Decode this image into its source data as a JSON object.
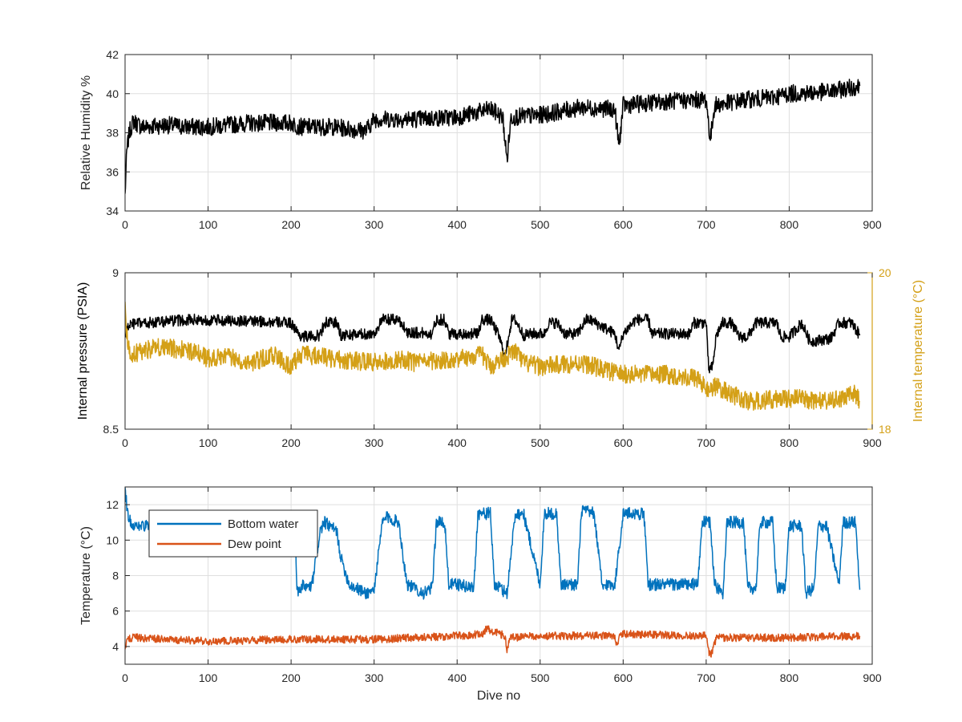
{
  "chart_data": [
    {
      "type": "line",
      "ylabel": "Relative Humidity %",
      "xlim": [
        0,
        900
      ],
      "ylim": [
        34,
        42
      ],
      "xticks": [
        0,
        100,
        200,
        300,
        400,
        500,
        600,
        700,
        800,
        900
      ],
      "yticks": [
        34,
        36,
        38,
        40,
        42
      ],
      "grid": true,
      "series": [
        {
          "color": "#000000",
          "x": [
            0,
            2,
            5,
            10,
            20,
            50,
            75,
            100,
            150,
            200,
            210,
            250,
            290,
            300,
            350,
            400,
            430,
            440,
            455,
            460,
            465,
            500,
            550,
            590,
            595,
            600,
            650,
            700,
            705,
            710,
            750,
            780,
            800,
            850,
            885
          ],
          "y": [
            34.8,
            37.0,
            38.0,
            38.6,
            38.3,
            38.4,
            38.3,
            38.3,
            38.5,
            38.5,
            38.3,
            38.3,
            38.1,
            38.7,
            38.7,
            38.8,
            39.1,
            39.2,
            38.8,
            36.6,
            38.8,
            38.9,
            39.3,
            39.2,
            37.3,
            39.4,
            39.6,
            39.7,
            37.6,
            39.4,
            39.7,
            39.8,
            40.0,
            40.1,
            40.4
          ],
          "noise": 0.45
        }
      ]
    },
    {
      "type": "line",
      "ylabel": "Internal pressure (PSIA)",
      "y2label": "Internal temperature (°C)",
      "xlim": [
        0,
        900
      ],
      "ylim": [
        8.5,
        9
      ],
      "y2lim": [
        18,
        20
      ],
      "xticks": [
        0,
        100,
        200,
        300,
        400,
        500,
        600,
        700,
        800,
        900
      ],
      "yticks": [
        8.5,
        9
      ],
      "y2ticks": [
        18,
        20
      ],
      "grid": true,
      "series": [
        {
          "axis": "left",
          "color": "#000000",
          "x": [
            0,
            5,
            30,
            80,
            150,
            200,
            210,
            220,
            235,
            240,
            255,
            260,
            300,
            310,
            330,
            340,
            370,
            375,
            385,
            390,
            425,
            430,
            440,
            450,
            458,
            462,
            466,
            470,
            480,
            490,
            505,
            510,
            520,
            530,
            545,
            555,
            560,
            590,
            595,
            600,
            615,
            630,
            635,
            680,
            685,
            700,
            703,
            708,
            712,
            720,
            730,
            740,
            750,
            760,
            785,
            790,
            800,
            815,
            825,
            850,
            860,
            875,
            885
          ],
          "y": [
            8.8,
            8.835,
            8.84,
            8.85,
            8.845,
            8.84,
            8.8,
            8.795,
            8.8,
            8.84,
            8.84,
            8.8,
            8.805,
            8.85,
            8.85,
            8.81,
            8.805,
            8.85,
            8.85,
            8.805,
            8.805,
            8.85,
            8.85,
            8.8,
            8.73,
            8.8,
            8.85,
            8.85,
            8.8,
            8.805,
            8.805,
            8.84,
            8.84,
            8.805,
            8.805,
            8.85,
            8.85,
            8.805,
            8.75,
            8.805,
            8.85,
            8.85,
            8.805,
            8.805,
            8.84,
            8.84,
            8.69,
            8.7,
            8.8,
            8.84,
            8.84,
            8.795,
            8.795,
            8.84,
            8.84,
            8.795,
            8.795,
            8.84,
            8.78,
            8.79,
            8.84,
            8.84,
            8.8
          ],
          "noise": 0.018
        },
        {
          "axis": "right",
          "color": "#D4A017",
          "x": [
            0,
            2,
            6,
            20,
            40,
            80,
            100,
            120,
            150,
            180,
            200,
            215,
            220,
            250,
            300,
            330,
            350,
            400,
            430,
            440,
            455,
            470,
            480,
            500,
            550,
            580,
            600,
            650,
            690,
            700,
            710,
            750,
            800,
            850,
            880,
            885
          ],
          "y": [
            19.7,
            19.2,
            18.95,
            19.0,
            19.05,
            19.0,
            18.9,
            18.95,
            18.85,
            18.95,
            18.8,
            19.0,
            18.95,
            18.9,
            18.85,
            18.9,
            18.85,
            18.9,
            18.95,
            18.8,
            18.9,
            19.0,
            18.85,
            18.8,
            18.85,
            18.75,
            18.7,
            18.7,
            18.65,
            18.5,
            18.55,
            18.35,
            18.4,
            18.35,
            18.45,
            18.35
          ],
          "noise": 0.12
        }
      ]
    },
    {
      "type": "line",
      "ylabel": "Temperature (°C)",
      "xlabel": "Dive no",
      "xlim": [
        0,
        900
      ],
      "ylim": [
        3,
        13
      ],
      "xticks": [
        0,
        100,
        200,
        300,
        400,
        500,
        600,
        700,
        800,
        900
      ],
      "yticks": [
        4,
        6,
        8,
        10,
        12
      ],
      "grid": true,
      "legend": "top-left",
      "series": [
        {
          "name": "Bottom water",
          "color": "#0072BD",
          "x": [
            0,
            2,
            4,
            8,
            15,
            30,
            60,
            100,
            150,
            200,
            205,
            207,
            210,
            215,
            218,
            225,
            235,
            240,
            255,
            260,
            270,
            290,
            300,
            310,
            315,
            330,
            335,
            340,
            360,
            370,
            375,
            385,
            390,
            400,
            420,
            425,
            440,
            445,
            460,
            470,
            480,
            500,
            505,
            520,
            525,
            530,
            545,
            550,
            565,
            575,
            580,
            590,
            600,
            625,
            630,
            650,
            690,
            695,
            705,
            710,
            720,
            725,
            745,
            750,
            760,
            765,
            780,
            785,
            795,
            800,
            815,
            820,
            830,
            835,
            845,
            860,
            865,
            880,
            885
          ],
          "y": [
            13,
            12.0,
            11.3,
            10.9,
            10.8,
            10.8,
            10.8,
            10.8,
            10.8,
            10.8,
            10.8,
            7.3,
            7.0,
            7.5,
            7.3,
            7.4,
            10.5,
            11.0,
            10.5,
            9.0,
            7.5,
            7.0,
            7.2,
            11.0,
            11.3,
            11.0,
            9.0,
            7.5,
            7.0,
            7.3,
            11.0,
            11.0,
            7.5,
            7.5,
            7.3,
            11.5,
            11.5,
            7.5,
            7.0,
            11.5,
            11.5,
            7.5,
            11.5,
            11.5,
            7.5,
            7.5,
            7.5,
            11.7,
            11.5,
            7.3,
            7.5,
            7.5,
            11.5,
            11.5,
            7.5,
            7.5,
            7.5,
            11.0,
            11.0,
            7.5,
            7.0,
            11.0,
            11.0,
            7.3,
            7.3,
            11.0,
            11.0,
            7.3,
            7.3,
            10.8,
            10.8,
            7.0,
            7.3,
            10.8,
            10.8,
            7.5,
            11.0,
            11.0,
            7.2
          ],
          "noise": 0.35
        },
        {
          "name": "Dew point",
          "color": "#D95319",
          "x": [
            0,
            3,
            10,
            100,
            200,
            300,
            400,
            430,
            435,
            458,
            460,
            463,
            500,
            590,
            593,
            596,
            600,
            700,
            703,
            707,
            712,
            800,
            885
          ],
          "y": [
            4.0,
            4.4,
            4.5,
            4.3,
            4.4,
            4.4,
            4.6,
            4.7,
            5.0,
            4.6,
            3.6,
            4.5,
            4.6,
            4.6,
            4.0,
            4.6,
            4.7,
            4.6,
            3.7,
            3.6,
            4.5,
            4.5,
            4.6
          ],
          "noise": 0.22
        }
      ]
    }
  ]
}
